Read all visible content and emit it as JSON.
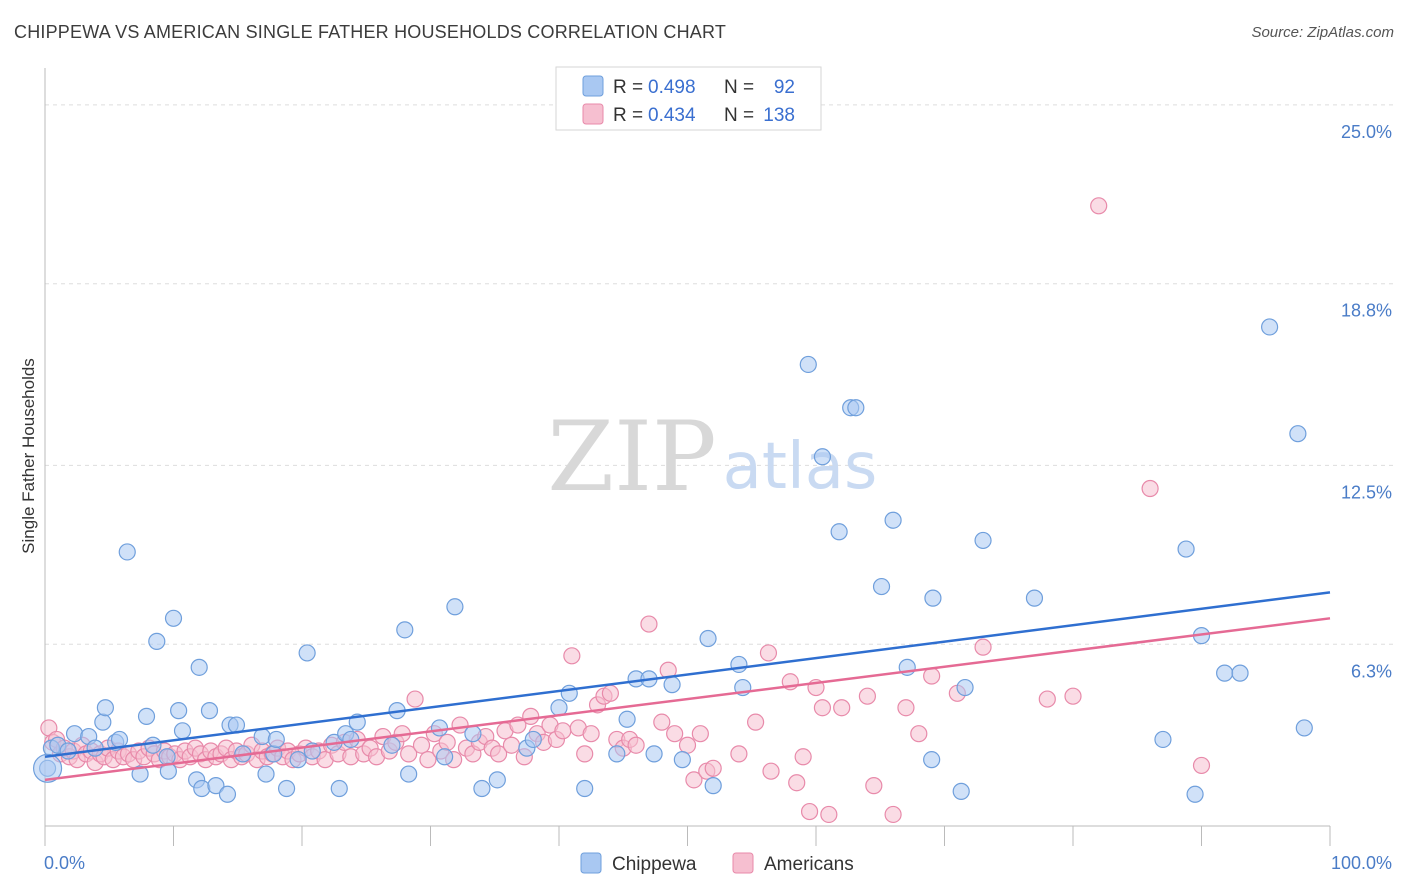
{
  "title": "CHIPPEWA VS AMERICAN SINGLE FATHER HOUSEHOLDS CORRELATION CHART",
  "source": "Source: ZipAtlas.com",
  "watermark": {
    "zip": "ZIP",
    "atlas": "atlas"
  },
  "colors": {
    "chippewa_fill": "#a9c8f2",
    "chippewa_stroke": "#6f9fdc",
    "chippewa_line": "#2f6fd0",
    "americans_fill": "#f6bfd0",
    "americans_stroke": "#e88aaa",
    "americans_line": "#e56a94",
    "grid": "#dddddd",
    "tick_text": "#4a7cc7"
  },
  "legend": {
    "r_label": "R =",
    "n_label": "N =",
    "chippewa": {
      "r": "0.498",
      "n": "92"
    },
    "americans": {
      "r": "0.434",
      "n": "138"
    }
  },
  "chart_data": {
    "type": "scatter",
    "title": "CHIPPEWA VS AMERICAN SINGLE FATHER HOUSEHOLDS CORRELATION CHART",
    "xlabel": "",
    "ylabel": "Single Father Households",
    "xlim": [
      0,
      100
    ],
    "ylim": [
      0,
      26
    ],
    "x_tick_labels": [
      "0.0%",
      "100.0%"
    ],
    "y_ticks": [
      6.3,
      12.5,
      18.8,
      25.0
    ],
    "y_tick_labels": [
      "6.3%",
      "12.5%",
      "18.8%",
      "25.0%"
    ],
    "grid": "horizontal dashed",
    "legend_position": "top-center",
    "series": [
      {
        "name": "Chippewa",
        "trend": {
          "x": [
            0,
            100
          ],
          "y": [
            2.4,
            8.1
          ]
        },
        "points": [
          [
            0.2,
            2.0
          ],
          [
            0.5,
            2.7
          ],
          [
            1.0,
            2.8
          ],
          [
            1.8,
            2.6
          ],
          [
            2.3,
            3.2
          ],
          [
            3.4,
            3.1
          ],
          [
            3.9,
            2.7
          ],
          [
            4.5,
            3.6
          ],
          [
            4.7,
            4.1
          ],
          [
            5.5,
            2.9
          ],
          [
            5.8,
            3.0
          ],
          [
            6.4,
            9.5
          ],
          [
            7.4,
            1.8
          ],
          [
            7.9,
            3.8
          ],
          [
            8.4,
            2.8
          ],
          [
            8.7,
            6.4
          ],
          [
            9.5,
            2.4
          ],
          [
            9.6,
            1.9
          ],
          [
            10.0,
            7.2
          ],
          [
            10.4,
            4.0
          ],
          [
            10.7,
            3.3
          ],
          [
            11.8,
            1.6
          ],
          [
            12.0,
            5.5
          ],
          [
            12.2,
            1.3
          ],
          [
            12.8,
            4.0
          ],
          [
            13.3,
            1.4
          ],
          [
            14.2,
            1.1
          ],
          [
            14.4,
            3.5
          ],
          [
            14.9,
            3.5
          ],
          [
            15.4,
            2.5
          ],
          [
            16.9,
            3.1
          ],
          [
            17.2,
            1.8
          ],
          [
            17.8,
            2.5
          ],
          [
            18.0,
            3.0
          ],
          [
            18.8,
            1.3
          ],
          [
            19.7,
            2.3
          ],
          [
            20.4,
            6.0
          ],
          [
            20.8,
            2.6
          ],
          [
            22.5,
            2.9
          ],
          [
            22.9,
            1.3
          ],
          [
            23.4,
            3.2
          ],
          [
            23.8,
            3.0
          ],
          [
            24.3,
            3.6
          ],
          [
            27.0,
            2.8
          ],
          [
            27.4,
            4.0
          ],
          [
            28.0,
            6.8
          ],
          [
            28.3,
            1.8
          ],
          [
            30.7,
            3.4
          ],
          [
            31.1,
            2.4
          ],
          [
            31.9,
            7.6
          ],
          [
            33.3,
            3.2
          ],
          [
            34.0,
            1.3
          ],
          [
            35.2,
            1.6
          ],
          [
            37.5,
            2.7
          ],
          [
            38.0,
            3.0
          ],
          [
            40.0,
            4.1
          ],
          [
            40.8,
            4.6
          ],
          [
            42.0,
            1.3
          ],
          [
            44.5,
            2.5
          ],
          [
            45.3,
            3.7
          ],
          [
            46.0,
            5.1
          ],
          [
            47.0,
            5.1
          ],
          [
            47.4,
            2.5
          ],
          [
            48.8,
            4.9
          ],
          [
            49.6,
            2.3
          ],
          [
            51.6,
            6.5
          ],
          [
            52.0,
            1.4
          ],
          [
            54.0,
            5.6
          ],
          [
            54.3,
            4.8
          ],
          [
            59.4,
            16.0
          ],
          [
            60.5,
            12.8
          ],
          [
            61.8,
            10.2
          ],
          [
            62.7,
            14.5
          ],
          [
            63.1,
            14.5
          ],
          [
            65.1,
            8.3
          ],
          [
            66.0,
            10.6
          ],
          [
            67.1,
            5.5
          ],
          [
            69.0,
            2.3
          ],
          [
            69.1,
            7.9
          ],
          [
            71.3,
            1.2
          ],
          [
            71.6,
            4.8
          ],
          [
            73.0,
            9.9
          ],
          [
            77.0,
            7.9
          ],
          [
            87.0,
            3.0
          ],
          [
            88.8,
            9.6
          ],
          [
            89.5,
            1.1
          ],
          [
            90.0,
            6.6
          ],
          [
            91.8,
            5.3
          ],
          [
            93.0,
            5.3
          ],
          [
            95.3,
            17.3
          ],
          [
            97.5,
            13.6
          ],
          [
            98.0,
            3.4
          ]
        ]
      },
      {
        "name": "Americans",
        "trend": {
          "x": [
            0,
            100
          ],
          "y": [
            1.6,
            7.2
          ]
        },
        "points": [
          [
            0.3,
            3.4
          ],
          [
            0.6,
            2.9
          ],
          [
            0.9,
            3.0
          ],
          [
            1.2,
            2.5
          ],
          [
            1.5,
            2.7
          ],
          [
            1.9,
            2.4
          ],
          [
            2.2,
            2.6
          ],
          [
            2.5,
            2.3
          ],
          [
            2.9,
            2.8
          ],
          [
            3.2,
            2.5
          ],
          [
            3.6,
            2.6
          ],
          [
            3.9,
            2.2
          ],
          [
            4.3,
            2.5
          ],
          [
            4.6,
            2.4
          ],
          [
            4.9,
            2.7
          ],
          [
            5.3,
            2.3
          ],
          [
            5.7,
            2.6
          ],
          [
            6.1,
            2.4
          ],
          [
            6.5,
            2.5
          ],
          [
            6.9,
            2.3
          ],
          [
            7.3,
            2.6
          ],
          [
            7.7,
            2.4
          ],
          [
            8.1,
            2.7
          ],
          [
            8.5,
            2.5
          ],
          [
            8.9,
            2.3
          ],
          [
            9.3,
            2.6
          ],
          [
            9.7,
            2.4
          ],
          [
            10.1,
            2.5
          ],
          [
            10.5,
            2.3
          ],
          [
            10.9,
            2.6
          ],
          [
            11.3,
            2.4
          ],
          [
            11.7,
            2.7
          ],
          [
            12.1,
            2.5
          ],
          [
            12.5,
            2.3
          ],
          [
            12.9,
            2.6
          ],
          [
            13.3,
            2.4
          ],
          [
            13.7,
            2.5
          ],
          [
            14.1,
            2.7
          ],
          [
            14.5,
            2.3
          ],
          [
            14.9,
            2.6
          ],
          [
            15.3,
            2.4
          ],
          [
            15.7,
            2.5
          ],
          [
            16.1,
            2.8
          ],
          [
            16.5,
            2.3
          ],
          [
            16.9,
            2.6
          ],
          [
            17.3,
            2.4
          ],
          [
            17.7,
            2.5
          ],
          [
            18.1,
            2.7
          ],
          [
            18.5,
            2.4
          ],
          [
            18.9,
            2.6
          ],
          [
            19.3,
            2.3
          ],
          [
            19.8,
            2.5
          ],
          [
            20.3,
            2.7
          ],
          [
            20.8,
            2.4
          ],
          [
            21.3,
            2.6
          ],
          [
            21.8,
            2.3
          ],
          [
            22.3,
            2.8
          ],
          [
            22.8,
            2.5
          ],
          [
            23.3,
            2.9
          ],
          [
            23.8,
            2.4
          ],
          [
            24.3,
            3.0
          ],
          [
            24.8,
            2.5
          ],
          [
            25.3,
            2.7
          ],
          [
            25.8,
            2.4
          ],
          [
            26.3,
            3.1
          ],
          [
            26.8,
            2.6
          ],
          [
            27.3,
            2.9
          ],
          [
            27.8,
            3.2
          ],
          [
            28.3,
            2.5
          ],
          [
            28.8,
            4.4
          ],
          [
            29.3,
            2.8
          ],
          [
            29.8,
            2.3
          ],
          [
            30.3,
            3.2
          ],
          [
            30.8,
            2.6
          ],
          [
            31.3,
            2.9
          ],
          [
            31.8,
            2.3
          ],
          [
            32.3,
            3.5
          ],
          [
            32.8,
            2.7
          ],
          [
            33.3,
            2.5
          ],
          [
            33.8,
            2.9
          ],
          [
            34.3,
            3.1
          ],
          [
            34.8,
            2.7
          ],
          [
            35.3,
            2.5
          ],
          [
            35.8,
            3.3
          ],
          [
            36.3,
            2.8
          ],
          [
            36.8,
            3.5
          ],
          [
            37.3,
            2.4
          ],
          [
            37.8,
            3.8
          ],
          [
            38.3,
            3.2
          ],
          [
            38.8,
            2.9
          ],
          [
            39.3,
            3.5
          ],
          [
            39.8,
            3.0
          ],
          [
            40.3,
            3.3
          ],
          [
            41.0,
            5.9
          ],
          [
            41.5,
            3.4
          ],
          [
            42.0,
            2.5
          ],
          [
            42.5,
            3.2
          ],
          [
            43.0,
            4.2
          ],
          [
            43.5,
            4.5
          ],
          [
            44.0,
            4.6
          ],
          [
            44.5,
            3.0
          ],
          [
            45.0,
            2.7
          ],
          [
            45.5,
            3.0
          ],
          [
            46.0,
            2.8
          ],
          [
            47.0,
            7.0
          ],
          [
            48.0,
            3.6
          ],
          [
            48.5,
            5.4
          ],
          [
            49.0,
            3.2
          ],
          [
            50.0,
            2.8
          ],
          [
            50.5,
            1.6
          ],
          [
            51.0,
            3.2
          ],
          [
            51.5,
            1.9
          ],
          [
            52.0,
            2.0
          ],
          [
            54.0,
            2.5
          ],
          [
            55.3,
            3.6
          ],
          [
            56.3,
            6.0
          ],
          [
            56.5,
            1.9
          ],
          [
            58.0,
            5.0
          ],
          [
            58.5,
            1.5
          ],
          [
            59.0,
            2.4
          ],
          [
            59.5,
            0.5
          ],
          [
            60.0,
            4.8
          ],
          [
            60.5,
            4.1
          ],
          [
            61.0,
            0.4
          ],
          [
            62.0,
            4.1
          ],
          [
            64.0,
            4.5
          ],
          [
            64.5,
            1.4
          ],
          [
            66.0,
            0.4
          ],
          [
            67.0,
            4.1
          ],
          [
            68.0,
            3.2
          ],
          [
            69.0,
            5.2
          ],
          [
            71.0,
            4.6
          ],
          [
            73.0,
            6.2
          ],
          [
            78.0,
            4.4
          ],
          [
            80.0,
            4.5
          ],
          [
            82.0,
            21.5
          ],
          [
            86.0,
            11.7
          ],
          [
            90.0,
            2.1
          ]
        ]
      }
    ]
  }
}
